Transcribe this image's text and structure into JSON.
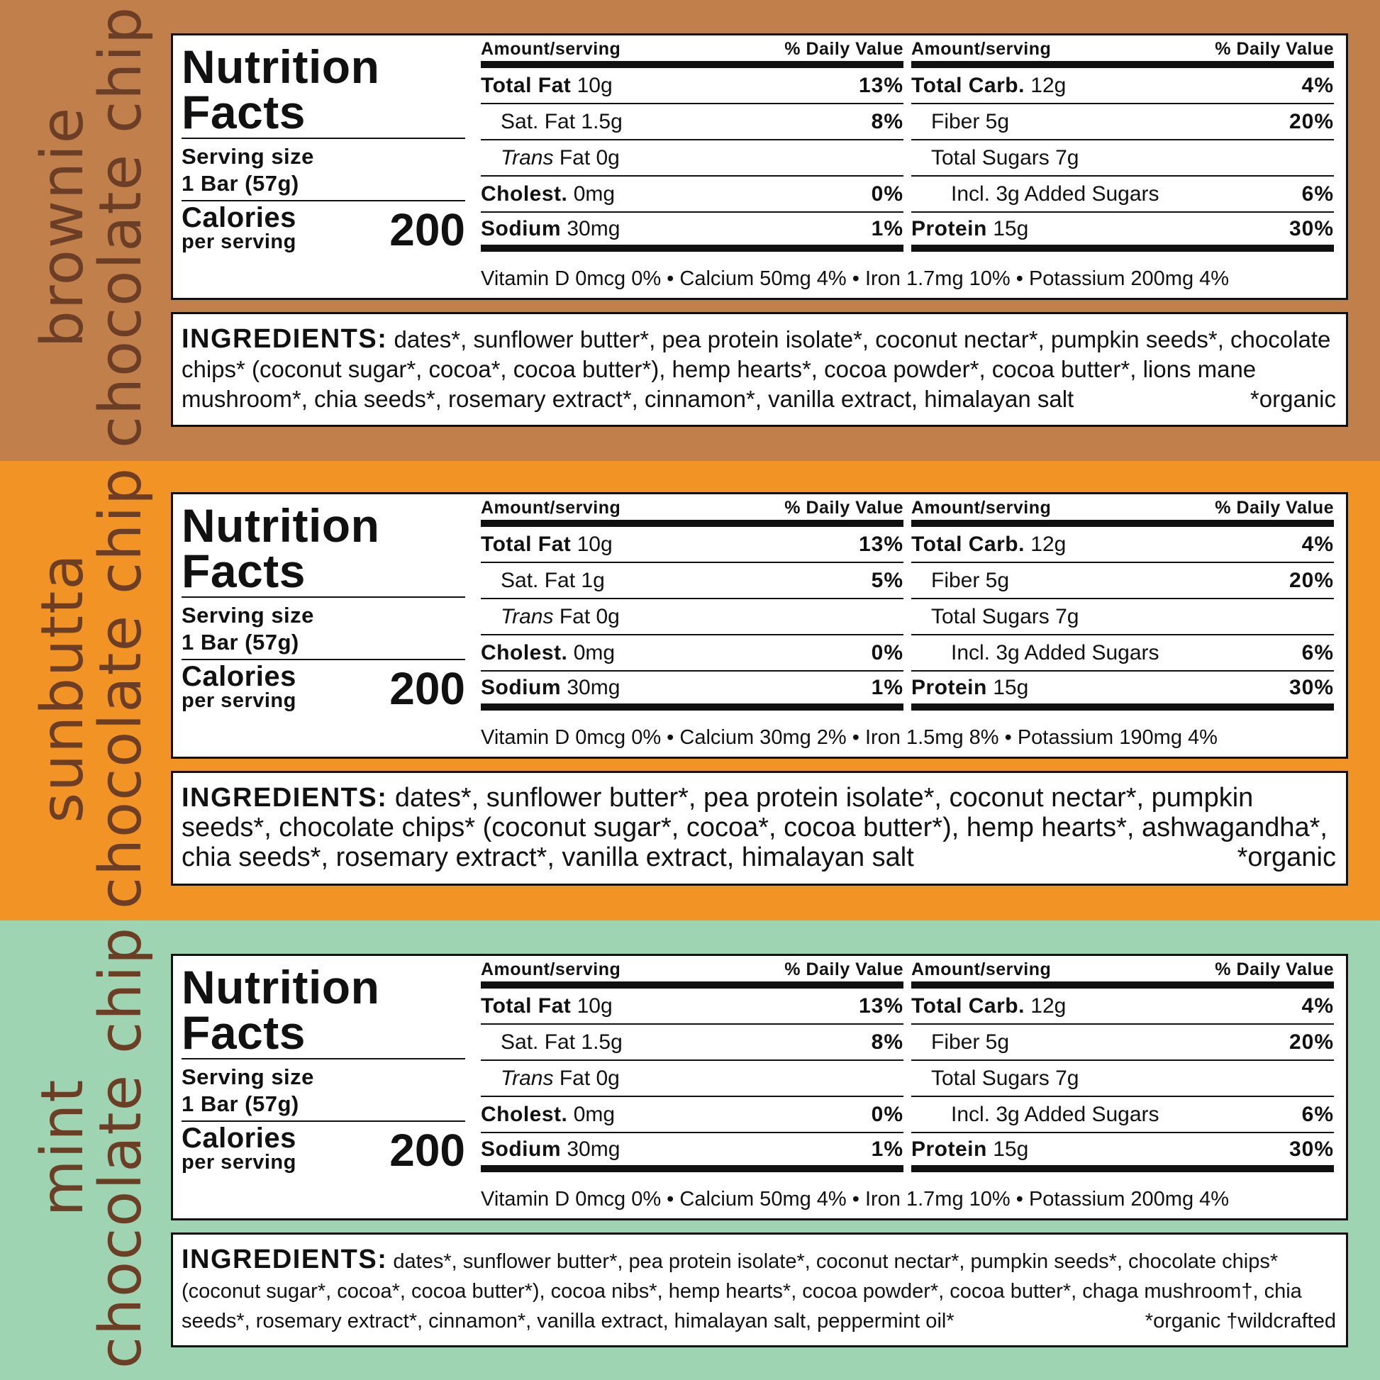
{
  "colors": {
    "band1": "#c17f4b",
    "band2": "#f29325",
    "band3": "#9fd4b3",
    "title_text": "#6b3e25"
  },
  "labels": {
    "nutrition": "Nutrition",
    "facts": "Facts",
    "serving_size": "Serving size",
    "serving_value": "1 Bar (57g)",
    "calories": "Calories",
    "per_serving": "per serving",
    "amount": "Amount/serving",
    "daily_value": "% Daily Value",
    "ingredients": "INGREDIENTS:"
  },
  "products": [
    {
      "name_line1": "brownie",
      "name_line2": "chocolate chip",
      "calories": "200",
      "left": [
        {
          "bold": "Total Fat",
          "amount": "10g",
          "pct": "13%"
        },
        {
          "bold": "",
          "amount": "Sat. Fat 1.5g",
          "pct": "8%"
        },
        {
          "italic": "Trans",
          "amount": "Fat 0g",
          "pct": ""
        },
        {
          "bold": "Cholest.",
          "amount": "0mg",
          "pct": "0%"
        },
        {
          "bold": "Sodium",
          "amount": "30mg",
          "pct": "1%"
        }
      ],
      "right": [
        {
          "bold": "Total Carb.",
          "amount": "12g",
          "pct": "4%"
        },
        {
          "bold": "",
          "amount": "Fiber 5g",
          "pct": "20%"
        },
        {
          "bold": "",
          "amount": "Total Sugars 7g",
          "pct": ""
        },
        {
          "bold": "",
          "amount": "Incl. 3g Added Sugars",
          "pct": "6%"
        },
        {
          "bold": "Protein",
          "amount": "15g",
          "pct": "30%"
        }
      ],
      "vitamins": "Vitamin D 0mcg 0% • Calcium 50mg 4% • Iron 1.7mg 10% • Potassium 200mg 4%",
      "ingredients": "dates*, sunflower butter*, pea protein isolate*, coconut nectar*, pumpkin seeds*, chocolate chips* (coconut sugar*, cocoa*, cocoa butter*), hemp hearts*, cocoa powder*, cocoa butter*, lions mane mushroom*, chia seeds*, rosemary extract*, cinnamon*, vanilla extract, himalayan salt",
      "note": "*organic"
    },
    {
      "name_line1": "sunbutta",
      "name_line2": "chocolate chip",
      "calories": "200",
      "left": [
        {
          "bold": "Total Fat",
          "amount": "10g",
          "pct": "13%"
        },
        {
          "bold": "",
          "amount": "Sat. Fat 1g",
          "pct": "5%"
        },
        {
          "italic": "Trans",
          "amount": "Fat 0g",
          "pct": ""
        },
        {
          "bold": "Cholest.",
          "amount": "0mg",
          "pct": "0%"
        },
        {
          "bold": "Sodium",
          "amount": "30mg",
          "pct": "1%"
        }
      ],
      "right": [
        {
          "bold": "Total Carb.",
          "amount": "12g",
          "pct": "4%"
        },
        {
          "bold": "",
          "amount": "Fiber 5g",
          "pct": "20%"
        },
        {
          "bold": "",
          "amount": "Total Sugars 7g",
          "pct": ""
        },
        {
          "bold": "",
          "amount": "Incl. 3g Added Sugars",
          "pct": "6%"
        },
        {
          "bold": "Protein",
          "amount": "15g",
          "pct": "30%"
        }
      ],
      "vitamins": "Vitamin D 0mcg 0% • Calcium 30mg 2% • Iron 1.5mg 8% • Potassium 190mg 4%",
      "ingredients": "dates*, sunflower butter*, pea protein isolate*, coconut nectar*, pumpkin seeds*, chocolate chips* (coconut sugar*, cocoa*, cocoa butter*), hemp hearts*, ashwagandha*, chia seeds*, rosemary extract*, vanilla extract, himalayan salt",
      "note": "*organic"
    },
    {
      "name_line1": "mint",
      "name_line2": "chocolate chip",
      "calories": "200",
      "left": [
        {
          "bold": "Total Fat",
          "amount": "10g",
          "pct": "13%"
        },
        {
          "bold": "",
          "amount": "Sat. Fat 1.5g",
          "pct": "8%"
        },
        {
          "italic": "Trans",
          "amount": "Fat 0g",
          "pct": ""
        },
        {
          "bold": "Cholest.",
          "amount": "0mg",
          "pct": "0%"
        },
        {
          "bold": "Sodium",
          "amount": "30mg",
          "pct": "1%"
        }
      ],
      "right": [
        {
          "bold": "Total Carb.",
          "amount": "12g",
          "pct": "4%"
        },
        {
          "bold": "",
          "amount": "Fiber 5g",
          "pct": "20%"
        },
        {
          "bold": "",
          "amount": "Total Sugars 7g",
          "pct": ""
        },
        {
          "bold": "",
          "amount": "Incl. 3g Added Sugars",
          "pct": "6%"
        },
        {
          "bold": "Protein",
          "amount": "15g",
          "pct": "30%"
        }
      ],
      "vitamins": "Vitamin D 0mcg 0% • Calcium 50mg 4% • Iron 1.7mg 10% • Potassium 200mg 4%",
      "ingredients": "dates*, sunflower butter*, pea protein isolate*, coconut nectar*, pumpkin seeds*, chocolate chips* (coconut sugar*, cocoa*, cocoa butter*), cocoa nibs*, hemp hearts*, cocoa powder*, cocoa butter*, chaga mushroom†, chia seeds*, rosemary extract*, cinnamon*, vanilla extract, himalayan salt, peppermint oil*",
      "note": "*organic  †wildcrafted"
    }
  ]
}
